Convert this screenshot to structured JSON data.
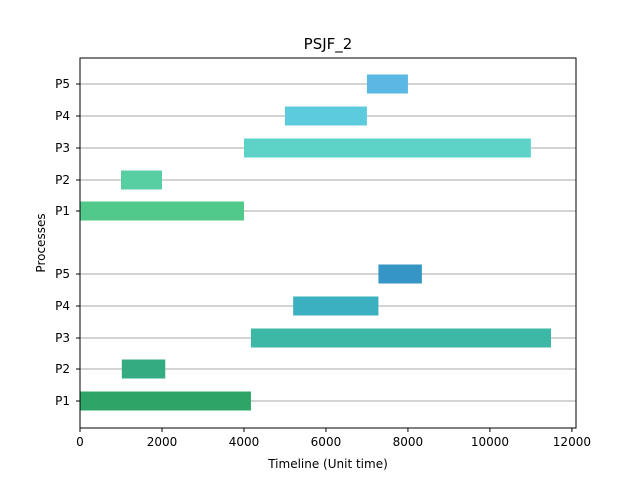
{
  "chart_data": {
    "type": "gantt",
    "title": "PSJF_2",
    "xlabel": "Timeline (Unit time)",
    "ylabel": "Processes",
    "xlim": [
      0,
      12100
    ],
    "x_ticks": [
      0,
      2000,
      4000,
      6000,
      8000,
      10000,
      12000
    ],
    "grid": "horizontal",
    "groups": [
      {
        "rows": [
          {
            "label": "P1",
            "start": 0,
            "end": 4170,
            "color": "#2ea567"
          },
          {
            "label": "P2",
            "start": 1020,
            "end": 2080,
            "color": "#35ab82"
          },
          {
            "label": "P3",
            "start": 4170,
            "end": 11490,
            "color": "#3db8a6"
          },
          {
            "label": "P4",
            "start": 5200,
            "end": 7280,
            "color": "#3ab0c0"
          },
          {
            "label": "P5",
            "start": 7280,
            "end": 8340,
            "color": "#3596c5"
          }
        ]
      },
      {
        "rows": [
          {
            "label": "P1",
            "start": 0,
            "end": 4000,
            "color": "#50c98a"
          },
          {
            "label": "P2",
            "start": 1000,
            "end": 2000,
            "color": "#58cea3"
          },
          {
            "label": "P3",
            "start": 4000,
            "end": 11000,
            "color": "#5dd3c7"
          },
          {
            "label": "P4",
            "start": 5000,
            "end": 7000,
            "color": "#5ccbde"
          },
          {
            "label": "P5",
            "start": 7000,
            "end": 8000,
            "color": "#5bb8e4"
          }
        ]
      }
    ]
  }
}
